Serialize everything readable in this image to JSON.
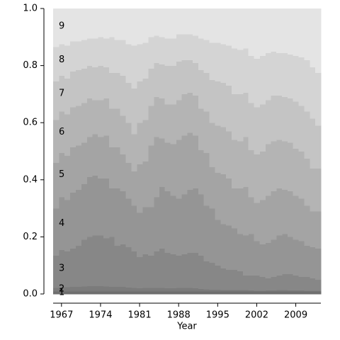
{
  "chart_data": {
    "type": "stackplot",
    "x_label": "Year",
    "x": [
      1966,
      1967,
      1968,
      1969,
      1970,
      1971,
      1972,
      1973,
      1974,
      1975,
      1976,
      1977,
      1978,
      1979,
      1980,
      1981,
      1982,
      1983,
      1984,
      1985,
      1986,
      1987,
      1988,
      1989,
      1990,
      1991,
      1992,
      1993,
      1994,
      1995,
      1996,
      1997,
      1998,
      1999,
      2000,
      2001,
      2002,
      2003,
      2004,
      2005,
      2006,
      2007,
      2008,
      2009,
      2010,
      2011,
      2012,
      2013
    ],
    "xlim": [
      1965.5,
      2013.5
    ],
    "xticks": [
      1967,
      1974,
      1981,
      1988,
      1995,
      2002,
      2009
    ],
    "ylim": [
      0,
      1
    ],
    "yticks": [
      {
        "value": 0,
        "label": "0.0"
      },
      {
        "value": 0.2,
        "label": "0.2"
      },
      {
        "value": 0.4,
        "label": "0.4"
      },
      {
        "value": 0.6,
        "label": "0.6"
      },
      {
        "value": 0.8,
        "label": "0.8"
      },
      {
        "value": 1,
        "label": "1.0"
      }
    ],
    "series": [
      {
        "name": "1",
        "color": "#6f6f6f",
        "values": [
          0.01,
          0.01,
          0.01,
          0.01,
          0.01,
          0.01,
          0.01,
          0.01,
          0.01,
          0.01,
          0.01,
          0.01,
          0.01,
          0.01,
          0.01,
          0.01,
          0.01,
          0.01,
          0.01,
          0.01,
          0.01,
          0.01,
          0.01,
          0.01,
          0.01,
          0.01,
          0.01,
          0.01,
          0.01,
          0.01,
          0.01,
          0.01,
          0.01,
          0.01,
          0.01,
          0.01,
          0.01,
          0.01,
          0.01,
          0.01,
          0.01,
          0.01,
          0.01,
          0.01,
          0.01,
          0.01,
          0.01,
          0.01
        ]
      },
      {
        "name": "2",
        "color": "#7b7b7b",
        "values": [
          0.012,
          0.014,
          0.014,
          0.015,
          0.016,
          0.017,
          0.018,
          0.018,
          0.018,
          0.017,
          0.015,
          0.016,
          0.015,
          0.013,
          0.012,
          0.011,
          0.012,
          0.012,
          0.012,
          0.012,
          0.011,
          0.011,
          0.012,
          0.012,
          0.012,
          0.01,
          0.008,
          0.007,
          0.006,
          0.006,
          0.005,
          0.005,
          0.004,
          0.004,
          0.004,
          0.003,
          0.002,
          0.002,
          0.003,
          0.003,
          0.004,
          0.004,
          0.003,
          0.003,
          0.003,
          0.002,
          0.002,
          0.002
        ]
      },
      {
        "name": "3",
        "color": "#878787",
        "values": [
          0.113,
          0.131,
          0.126,
          0.135,
          0.144,
          0.163,
          0.172,
          0.177,
          0.177,
          0.168,
          0.175,
          0.144,
          0.15,
          0.142,
          0.128,
          0.109,
          0.118,
          0.113,
          0.128,
          0.138,
          0.124,
          0.119,
          0.113,
          0.118,
          0.123,
          0.125,
          0.117,
          0.098,
          0.094,
          0.084,
          0.075,
          0.07,
          0.071,
          0.066,
          0.051,
          0.052,
          0.053,
          0.048,
          0.042,
          0.047,
          0.051,
          0.056,
          0.057,
          0.052,
          0.047,
          0.048,
          0.043,
          0.038
        ]
      },
      {
        "name": "4",
        "color": "#959595",
        "values": [
          0.165,
          0.185,
          0.18,
          0.195,
          0.195,
          0.195,
          0.21,
          0.21,
          0.2,
          0.21,
          0.17,
          0.2,
          0.185,
          0.17,
          0.16,
          0.155,
          0.165,
          0.17,
          0.19,
          0.215,
          0.215,
          0.205,
          0.2,
          0.21,
          0.22,
          0.225,
          0.215,
          0.195,
          0.19,
          0.16,
          0.155,
          0.155,
          0.145,
          0.13,
          0.14,
          0.145,
          0.12,
          0.115,
          0.125,
          0.13,
          0.14,
          0.14,
          0.13,
          0.125,
          0.125,
          0.11,
          0.11,
          0.11
        ]
      },
      {
        "name": "5",
        "color": "#a4a4a4",
        "values": [
          0.16,
          0.155,
          0.155,
          0.16,
          0.155,
          0.145,
          0.14,
          0.145,
          0.145,
          0.15,
          0.145,
          0.145,
          0.13,
          0.125,
          0.12,
          0.17,
          0.16,
          0.215,
          0.21,
          0.17,
          0.17,
          0.18,
          0.205,
          0.205,
          0.2,
          0.185,
          0.155,
          0.185,
          0.145,
          0.165,
          0.175,
          0.165,
          0.14,
          0.16,
          0.17,
          0.13,
          0.135,
          0.155,
          0.165,
          0.17,
          0.165,
          0.155,
          0.16,
          0.155,
          0.15,
          0.14,
          0.125,
          0.13
        ]
      },
      {
        "name": "6",
        "color": "#b4b4b4",
        "values": [
          0.15,
          0.145,
          0.145,
          0.14,
          0.14,
          0.14,
          0.135,
          0.12,
          0.13,
          0.13,
          0.135,
          0.135,
          0.135,
          0.14,
          0.13,
          0.145,
          0.145,
          0.14,
          0.14,
          0.14,
          0.135,
          0.14,
          0.14,
          0.145,
          0.14,
          0.14,
          0.145,
          0.145,
          0.155,
          0.165,
          0.165,
          0.165,
          0.17,
          0.165,
          0.175,
          0.165,
          0.17,
          0.17,
          0.18,
          0.175,
          0.17,
          0.17,
          0.17,
          0.165,
          0.165,
          0.165,
          0.15,
          0.15
        ]
      },
      {
        "name": "7",
        "color": "#c4c4c4",
        "values": [
          0.135,
          0.125,
          0.125,
          0.125,
          0.125,
          0.12,
          0.115,
          0.115,
          0.12,
          0.11,
          0.125,
          0.125,
          0.14,
          0.14,
          0.16,
          0.145,
          0.145,
          0.13,
          0.12,
          0.12,
          0.135,
          0.135,
          0.135,
          0.12,
          0.115,
          0.115,
          0.135,
          0.135,
          0.15,
          0.155,
          0.155,
          0.16,
          0.16,
          0.165,
          0.155,
          0.165,
          0.165,
          0.165,
          0.155,
          0.16,
          0.155,
          0.155,
          0.155,
          0.165,
          0.16,
          0.165,
          0.175,
          0.15
        ]
      },
      {
        "name": "8",
        "color": "#d4d4d4",
        "values": [
          0.12,
          0.11,
          0.115,
          0.105,
          0.1,
          0.1,
          0.095,
          0.1,
          0.1,
          0.1,
          0.125,
          0.115,
          0.125,
          0.135,
          0.15,
          0.13,
          0.125,
          0.11,
          0.095,
          0.095,
          0.095,
          0.095,
          0.095,
          0.09,
          0.09,
          0.095,
          0.11,
          0.115,
          0.13,
          0.135,
          0.135,
          0.14,
          0.16,
          0.155,
          0.155,
          0.165,
          0.17,
          0.17,
          0.165,
          0.155,
          0.15,
          0.155,
          0.155,
          0.16,
          0.17,
          0.18,
          0.18,
          0.185
        ]
      },
      {
        "name": "9",
        "color": "#e4e4e4",
        "values": [
          0.135,
          0.125,
          0.13,
          0.115,
          0.115,
          0.11,
          0.105,
          0.105,
          0.1,
          0.105,
          0.1,
          0.11,
          0.11,
          0.125,
          0.13,
          0.125,
          0.12,
          0.1,
          0.095,
          0.1,
          0.105,
          0.105,
          0.09,
          0.09,
          0.09,
          0.095,
          0.105,
          0.11,
          0.12,
          0.12,
          0.125,
          0.13,
          0.14,
          0.145,
          0.14,
          0.165,
          0.175,
          0.165,
          0.155,
          0.15,
          0.155,
          0.155,
          0.16,
          0.165,
          0.17,
          0.18,
          0.205,
          0.225
        ]
      }
    ]
  }
}
